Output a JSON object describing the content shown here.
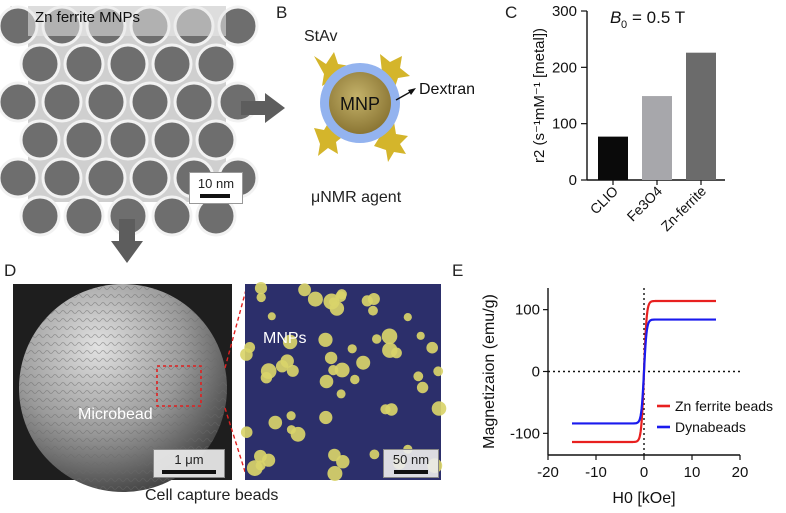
{
  "panels": {
    "a": {
      "label": "A",
      "title": "Zn ferrite MNPs",
      "scale": "10 nm"
    },
    "b": {
      "label": "B",
      "stav": "StAv",
      "mnp": "MNP",
      "dextran": "Dextran",
      "caption": "μNMR agent"
    },
    "c": {
      "label": "C",
      "field_label": "B",
      "field_sub": "0",
      "field_value": "= 0.5 T"
    },
    "d": {
      "label": "D",
      "microbead": "Microbead",
      "scale_left": "1 μm",
      "mnps": "MNPs",
      "scale_right": "50 nm",
      "caption": "Cell capture beads"
    },
    "e": {
      "label": "E"
    }
  },
  "colors": {
    "clio": "#0a0a0a",
    "fe3o4": "#a7a7ab",
    "znferrite": "#6b6b6b",
    "zn_curve": "#e8201f",
    "dyna_curve": "#1a1aee",
    "mnp_core": "#9a8541",
    "shell": "#93b3ef",
    "stav": "#d4b52b",
    "arrow": "#5d5d5d",
    "particle": "#d9d46a",
    "bg_right": "#2c2f6b"
  },
  "chart_data": [
    {
      "type": "bar",
      "categories": [
        "CLIO",
        "Fe3O4",
        "Zn-ferrite"
      ],
      "values": [
        77,
        149,
        226
      ],
      "ylim": [
        0,
        300
      ],
      "yticks": [
        "0",
        "100",
        "200",
        "300"
      ],
      "ylabel": "r2 (s⁻¹mM⁻¹ [metal])",
      "annotation": "B0 = 0.5 T"
    },
    {
      "type": "line",
      "xlim": [
        -20,
        20
      ],
      "ylim": [
        -135,
        135
      ],
      "xticks": [
        "-20",
        "-10",
        "0",
        "10",
        "20"
      ],
      "yticks": [
        "100",
        "0",
        "-100"
      ],
      "xlabel": "H0 [kOe]",
      "ylabel": "Magnetizaion (emu/g)",
      "series": [
        {
          "name": "Zn ferrite beads",
          "Ms": 114
        },
        {
          "name": "Dynabeads",
          "Ms": 84
        }
      ]
    }
  ]
}
